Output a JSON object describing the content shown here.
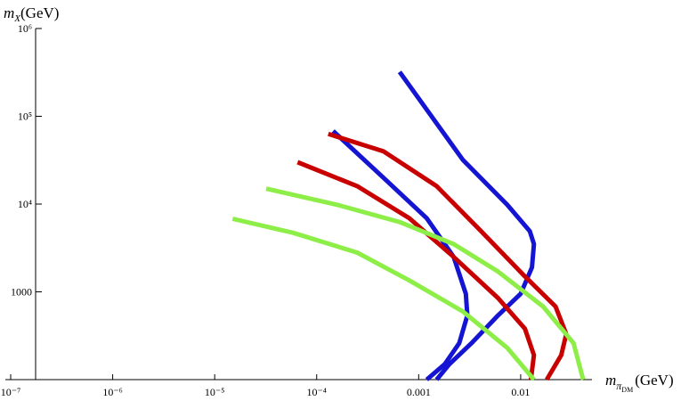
{
  "chart_data": {
    "type": "line",
    "x_label": {
      "symbol": "m",
      "subscript": "π",
      "subsubscript": "DM",
      "unit": "(GeV)"
    },
    "y_label": {
      "symbol": "m",
      "subscript": "X",
      "unit": "(GeV)"
    },
    "xscale": "log",
    "yscale": "log",
    "xlim": [
      1e-07,
      0.05
    ],
    "ylim": [
      100,
      1000000
    ],
    "xticks": [
      {
        "value": 1e-07,
        "label": "10⁻⁷"
      },
      {
        "value": 1e-06,
        "label": "10⁻⁶"
      },
      {
        "value": 1e-05,
        "label": "10⁻⁵"
      },
      {
        "value": 0.0001,
        "label": "10⁻⁴"
      },
      0.001,
      0.01
    ],
    "yticks": [
      1000,
      {
        "value": 10000,
        "label": "10⁴"
      },
      {
        "value": 100000,
        "label": "10⁵"
      },
      {
        "value": 1000000,
        "label": "10⁶"
      }
    ],
    "series": [
      {
        "color": "#1414d2",
        "x": [
          0.00065,
          0.0027,
          0.0074,
          0.0123,
          0.0135,
          0.0129,
          0.01,
          0.006,
          0.0033,
          0.002,
          0.0015
        ],
        "values": [
          320000,
          32000,
          9800,
          4900,
          3500,
          1900,
          950,
          540,
          260,
          150,
          100
        ]
      },
      {
        "color": "#1414d2",
        "x": [
          0.000145,
          0.00045,
          0.0012,
          0.0022,
          0.0029,
          0.003,
          0.0025,
          0.0018,
          0.0012
        ],
        "values": [
          68000,
          20000,
          6900,
          2500,
          950,
          540,
          260,
          150,
          100
        ]
      },
      {
        "color": "#c80000",
        "x": [
          0.00013,
          0.00045,
          0.0015,
          0.0041,
          0.011,
          0.022,
          0.028,
          0.025,
          0.018
        ],
        "values": [
          63000,
          40000,
          16000,
          4900,
          1500,
          680,
          330,
          190,
          100
        ]
      },
      {
        "color": "#c80000",
        "x": [
          6.5e-05,
          0.00025,
          0.00081,
          0.0022,
          0.006,
          0.011,
          0.0135,
          0.0126
        ],
        "values": [
          30000,
          16000,
          6900,
          2500,
          850,
          380,
          190,
          100
        ]
      },
      {
        "color": "#8cee46",
        "x": [
          3.2e-05,
          0.00016,
          0.00066,
          0.0022,
          0.006,
          0.0166,
          0.033,
          0.041
        ],
        "values": [
          15000,
          9800,
          6200,
          3500,
          1700,
          680,
          260,
          100
        ]
      },
      {
        "color": "#8cee46",
        "x": [
          1.5e-05,
          5.9e-05,
          0.00025,
          0.00081,
          0.0027,
          0.0074,
          0.0135
        ],
        "values": [
          6800,
          4700,
          2800,
          1350,
          600,
          230,
          100
        ]
      }
    ]
  }
}
